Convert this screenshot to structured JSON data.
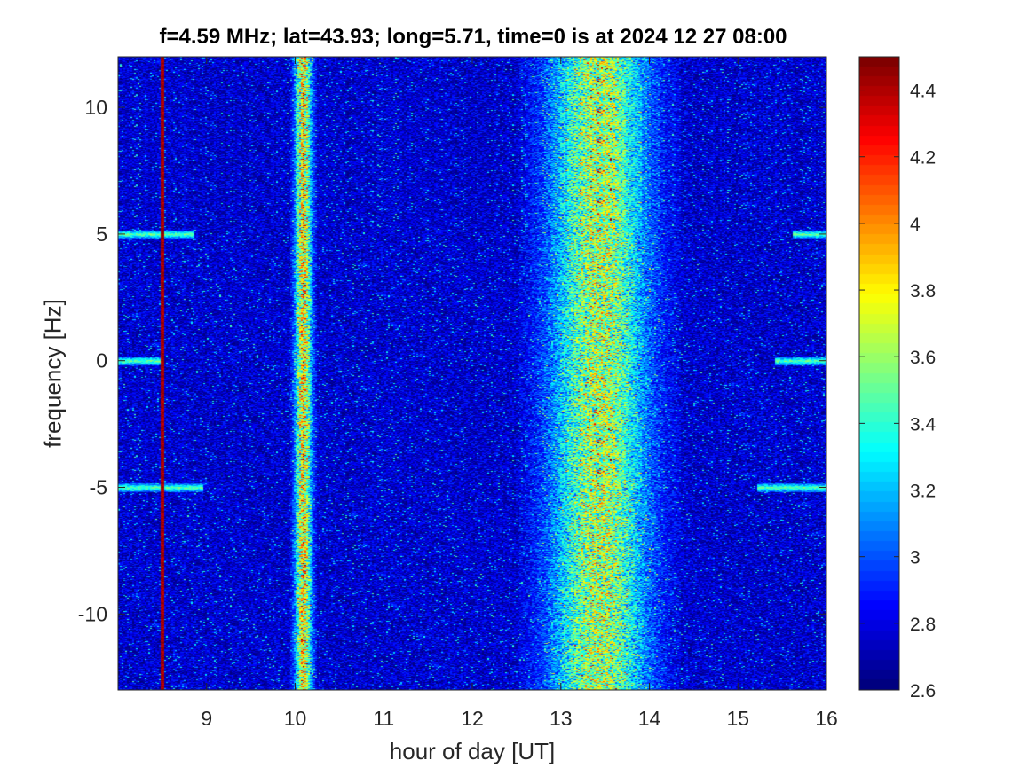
{
  "chart_data": {
    "type": "heatmap",
    "title": "f=4.59 MHz;  lat=43.93; long=5.71, time=0 is at 2024 12 27 08:00",
    "xlabel": "hour of day [UT]",
    "ylabel": "frequency [Hz]",
    "xlim": [
      8,
      16
    ],
    "ylim": [
      -13,
      12
    ],
    "xticks": [
      9,
      10,
      11,
      12,
      13,
      14,
      15,
      16
    ],
    "xtick_labels": [
      "9",
      "10",
      "11",
      "12",
      "13",
      "14",
      "15",
      "16"
    ],
    "yticks": [
      10,
      5,
      0,
      -5,
      -10
    ],
    "ytick_labels": [
      "10",
      "5",
      "0",
      "-5",
      "-10"
    ],
    "colormap": "jet",
    "clim": [
      2.6,
      4.5
    ],
    "colorbar_ticks": [
      4.4,
      4.2,
      4,
      3.8,
      3.6,
      3.4,
      3.2,
      3,
      2.8,
      2.6
    ],
    "colorbar_tick_labels": [
      "4.4",
      "4.2",
      "4",
      "3.8",
      "3.6",
      "3.4",
      "3.2",
      "3",
      "2.8",
      "2.6"
    ],
    "background_level": 2.75,
    "features": [
      {
        "kind": "vertical-band",
        "x_range": [
          9.97,
          10.2
        ],
        "peak_level": 3.9
      },
      {
        "kind": "vertical-band",
        "x_range": [
          12.75,
          14.1
        ],
        "peak_level": 3.7
      },
      {
        "kind": "vertical-line",
        "x": 8.49,
        "level": 4.5
      },
      {
        "kind": "horizontal-trace",
        "y": 5,
        "x_ranges": [
          [
            8.0,
            8.85
          ],
          [
            15.6,
            16.0
          ]
        ],
        "level": 3.5
      },
      {
        "kind": "horizontal-trace",
        "y": 0,
        "x_ranges": [
          [
            8.0,
            8.5
          ],
          [
            15.4,
            16.0
          ]
        ],
        "level": 3.5
      },
      {
        "kind": "horizontal-trace",
        "y": -5,
        "x_ranges": [
          [
            8.0,
            8.95
          ],
          [
            15.2,
            16.0
          ]
        ],
        "level": 3.5
      }
    ]
  }
}
